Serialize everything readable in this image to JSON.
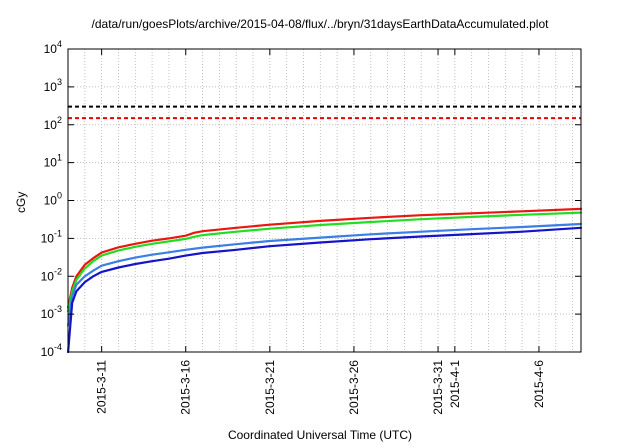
{
  "chart_data": {
    "type": "line",
    "title": "/data/run/goesPlots/archive/2015-04-08/flux/../bryn/31daysEarthDataAccumulated.plot",
    "xlabel": "Coordinated Universal Time (UTC)",
    "ylabel": "cGy",
    "yscale": "log",
    "ylim": [
      0.0001,
      10000
    ],
    "xlim": [
      "2015-03-09",
      "2015-04-08 12:00"
    ],
    "grid": true,
    "legend": "none",
    "y_ticks": [
      {
        "base": "10",
        "exp": "-4",
        "value": 0.0001
      },
      {
        "base": "10",
        "exp": "-3",
        "value": 0.001
      },
      {
        "base": "10",
        "exp": "-2",
        "value": 0.01
      },
      {
        "base": "10",
        "exp": "-1",
        "value": 0.1
      },
      {
        "base": "10",
        "exp": "0",
        "value": 1
      },
      {
        "base": "10",
        "exp": "1",
        "value": 10
      },
      {
        "base": "10",
        "exp": "2",
        "value": 100
      },
      {
        "base": "10",
        "exp": "3",
        "value": 1000
      },
      {
        "base": "10",
        "exp": "4",
        "value": 10000
      }
    ],
    "x_ticks": [
      {
        "label": "2015-3-11",
        "date": "2015-03-11"
      },
      {
        "label": "2015-3-16",
        "date": "2015-03-16"
      },
      {
        "label": "2015-3-21",
        "date": "2015-03-21"
      },
      {
        "label": "2015-3-26",
        "date": "2015-03-26"
      },
      {
        "label": "2015-3-31",
        "date": "2015-03-31"
      },
      {
        "label": "2015-4-1",
        "date": "2015-04-01"
      },
      {
        "label": "2015-4-6",
        "date": "2015-04-06"
      }
    ],
    "series": [
      {
        "color": "#e8170f",
        "x": [
          "2015-03-09 00:05",
          "2015-03-09 06:00",
          "2015-03-09 12:00",
          "2015-03-10 00:00",
          "2015-03-10 12:00",
          "2015-03-11 00:00",
          "2015-03-12 00:00",
          "2015-03-13 00:00",
          "2015-03-14 00:00",
          "2015-03-15 00:00",
          "2015-03-16 00:00",
          "2015-03-16 12:00",
          "2015-03-17 00:00",
          "2015-03-19 00:00",
          "2015-03-21 00:00",
          "2015-03-24 00:00",
          "2015-03-27 00:00",
          "2015-03-30 00:00",
          "2015-04-02 00:00",
          "2015-04-05 00:00",
          "2015-04-08 12:00"
        ],
        "y": [
          0.0015,
          0.005,
          0.01,
          0.02,
          0.03,
          0.042,
          0.058,
          0.072,
          0.087,
          0.1,
          0.118,
          0.14,
          0.155,
          0.19,
          0.23,
          0.29,
          0.35,
          0.41,
          0.46,
          0.52,
          0.6
        ]
      },
      {
        "color": "#22dd22",
        "x": [
          "2015-03-09 00:05",
          "2015-03-09 06:00",
          "2015-03-09 12:00",
          "2015-03-10 00:00",
          "2015-03-10 12:00",
          "2015-03-11 00:00",
          "2015-03-12 00:00",
          "2015-03-13 00:00",
          "2015-03-14 00:00",
          "2015-03-15 00:00",
          "2015-03-16 00:00",
          "2015-03-16 12:00",
          "2015-03-17 00:00",
          "2015-03-19 00:00",
          "2015-03-21 00:00",
          "2015-03-24 00:00",
          "2015-03-27 00:00",
          "2015-03-30 00:00",
          "2015-04-02 00:00",
          "2015-04-05 00:00",
          "2015-04-08 12:00"
        ],
        "y": [
          0.0012,
          0.004,
          0.008,
          0.016,
          0.025,
          0.035,
          0.048,
          0.06,
          0.072,
          0.083,
          0.097,
          0.11,
          0.122,
          0.15,
          0.18,
          0.225,
          0.27,
          0.32,
          0.37,
          0.42,
          0.48
        ]
      },
      {
        "color": "#3a7ee6",
        "x": [
          "2015-03-09 00:10",
          "2015-03-09 06:00",
          "2015-03-09 12:00",
          "2015-03-10 00:00",
          "2015-03-10 12:00",
          "2015-03-11 00:00",
          "2015-03-12 00:00",
          "2015-03-13 00:00",
          "2015-03-14 00:00",
          "2015-03-15 00:00",
          "2015-03-16 00:00",
          "2015-03-17 00:00",
          "2015-03-19 00:00",
          "2015-03-21 00:00",
          "2015-03-24 00:00",
          "2015-03-27 00:00",
          "2015-03-30 00:00",
          "2015-04-02 00:00",
          "2015-04-05 00:00",
          "2015-04-08 12:00"
        ],
        "y": [
          0.0005,
          0.003,
          0.006,
          0.01,
          0.014,
          0.019,
          0.025,
          0.031,
          0.037,
          0.043,
          0.05,
          0.057,
          0.07,
          0.085,
          0.105,
          0.128,
          0.15,
          0.175,
          0.2,
          0.24
        ]
      },
      {
        "color": "#1414c8",
        "x": [
          "2015-03-09 00:10",
          "2015-03-09 06:00",
          "2015-03-09 12:00",
          "2015-03-10 00:00",
          "2015-03-10 12:00",
          "2015-03-11 00:00",
          "2015-03-12 00:00",
          "2015-03-13 00:00",
          "2015-03-14 00:00",
          "2015-03-15 00:00",
          "2015-03-16 00:00",
          "2015-03-17 00:00",
          "2015-03-19 00:00",
          "2015-03-21 00:00",
          "2015-03-24 00:00",
          "2015-03-27 00:00",
          "2015-03-30 00:00",
          "2015-04-02 00:00",
          "2015-04-05 00:00",
          "2015-04-08 12:00"
        ],
        "y": [
          0.0001,
          0.002,
          0.004,
          0.007,
          0.01,
          0.013,
          0.017,
          0.021,
          0.025,
          0.029,
          0.035,
          0.041,
          0.05,
          0.062,
          0.078,
          0.095,
          0.112,
          0.13,
          0.15,
          0.19
        ]
      }
    ],
    "reference_lines": [
      {
        "y": 300,
        "color": "#000000",
        "style": "dashed"
      },
      {
        "y": 150,
        "color": "#ee0000",
        "style": "dashed"
      }
    ]
  }
}
